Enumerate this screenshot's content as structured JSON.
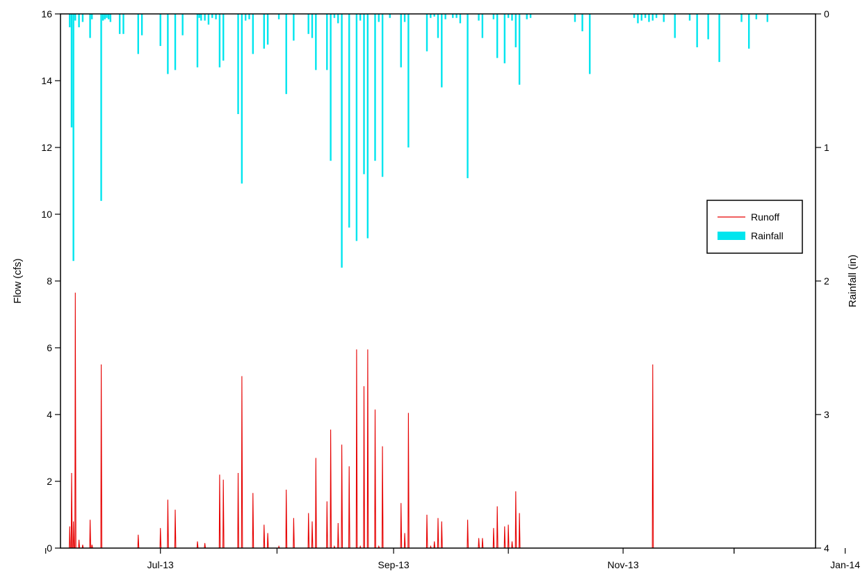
{
  "chart_data": {
    "type": "bar",
    "x_axis": {
      "tick_labels": [
        "Jul-13",
        "Sep-13",
        "Nov-13",
        "Jan-14"
      ],
      "label": ""
    },
    "y_left": {
      "label": "Flow (cfs)",
      "min": 0,
      "max": 16,
      "ticks": [
        0,
        2,
        4,
        6,
        8,
        10,
        12,
        14,
        16
      ]
    },
    "y_right": {
      "label": "Rainfall (in)",
      "min": 0,
      "max": 4,
      "inverted": true,
      "ticks": [
        0,
        1,
        2,
        3,
        4
      ]
    },
    "legend": {
      "placement": "right",
      "entries": [
        "Runoff",
        "Rainfall"
      ]
    },
    "colors": {
      "runoff": "#e60000",
      "rainfall": "#00e5ee"
    },
    "series": [
      {
        "name": "Runoff",
        "type": "line",
        "axis": "left",
        "unit": "cfs",
        "days": [
          2.5,
          3,
          3.5,
          4,
          5,
          6,
          8,
          8.5,
          11,
          11.5,
          12,
          12.5,
          13,
          13.5,
          16,
          17,
          21,
          22,
          27,
          29,
          31,
          33,
          37,
          37.5,
          38,
          39,
          40,
          41,
          42,
          43,
          44,
          48,
          49,
          50,
          51,
          52,
          55,
          56,
          59,
          61,
          63,
          67,
          68,
          69,
          72,
          73,
          74,
          75,
          76,
          78,
          80,
          81,
          82,
          83,
          85,
          86,
          87,
          89,
          92,
          93,
          94,
          99,
          100,
          101,
          102,
          103,
          104,
          106,
          107,
          108,
          110,
          113,
          114,
          117,
          118,
          120,
          121,
          122,
          123,
          124,
          126,
          127,
          139,
          141,
          143,
          155,
          156,
          157,
          158,
          159,
          160,
          161,
          163,
          166,
          170,
          172,
          175,
          178,
          184,
          186,
          188,
          191
        ],
        "values": [
          0.65,
          2.25,
          0.8,
          7.65,
          0.25,
          0.1,
          0.85,
          0.1,
          5.5,
          0.0,
          0.0,
          0.0,
          0.0,
          0.0,
          0.0,
          0.0,
          0.4,
          0.0,
          0.6,
          1.45,
          1.15,
          0.0,
          0.2,
          0.0,
          0.0,
          0.15,
          0.0,
          0.0,
          0.0,
          2.2,
          2.05,
          2.25,
          5.15,
          0.0,
          0.0,
          1.65,
          0.7,
          0.45,
          0.05,
          1.75,
          0.9,
          1.05,
          0.8,
          2.7,
          1.4,
          3.55,
          0.05,
          0.75,
          3.1,
          2.45,
          5.95,
          0.05,
          4.85,
          5.95,
          4.15,
          0.05,
          3.05,
          0.0,
          1.35,
          0.45,
          4.05,
          1.0,
          0.05,
          0.2,
          0.9,
          0.8,
          0.0,
          0.0,
          0.0,
          0.0,
          0.85,
          0.3,
          0.3,
          0.6,
          1.25,
          0.65,
          0.7,
          0.2,
          1.7,
          1.05,
          0.0,
          0.0,
          0.0,
          0.0,
          0.0,
          0.0,
          0.0,
          0.0,
          0.0,
          0.0,
          5.5,
          0.0,
          0.0,
          0.0,
          0.0,
          0.0,
          0.0,
          0.0,
          0.0,
          0.0,
          0.0,
          0.0
        ]
      },
      {
        "name": "Rainfall",
        "type": "bar",
        "axis": "right",
        "unit": "in",
        "days": [
          2.5,
          3,
          3.5,
          4,
          5,
          6,
          8,
          8.5,
          11,
          11.5,
          12,
          12.5,
          13,
          13.5,
          16,
          17,
          21,
          22,
          27,
          29,
          31,
          33,
          37,
          37.5,
          38,
          39,
          40,
          41,
          42,
          43,
          44,
          48,
          49,
          50,
          51,
          52,
          55,
          56,
          59,
          61,
          63,
          67,
          68,
          69,
          72,
          73,
          74,
          75,
          76,
          78,
          80,
          81,
          82,
          83,
          85,
          86,
          87,
          89,
          92,
          93,
          94,
          99,
          100,
          101,
          102,
          103,
          104,
          106,
          107,
          108,
          110,
          113,
          114,
          117,
          118,
          120,
          121,
          122,
          123,
          124,
          126,
          127,
          139,
          141,
          143,
          155,
          156,
          157,
          158,
          159,
          160,
          161,
          163,
          166,
          170,
          172,
          175,
          178,
          184,
          186,
          188,
          191
        ],
        "values": [
          0.1,
          0.85,
          1.85,
          0.05,
          0.1,
          0.06,
          0.18,
          0.04,
          1.4,
          0.05,
          0.04,
          0.03,
          0.04,
          0.06,
          0.15,
          0.15,
          0.3,
          0.16,
          0.24,
          0.45,
          0.42,
          0.16,
          0.4,
          0.03,
          0.05,
          0.05,
          0.08,
          0.03,
          0.04,
          0.4,
          0.35,
          0.75,
          1.27,
          0.05,
          0.04,
          0.3,
          0.26,
          0.23,
          0.04,
          0.6,
          0.2,
          0.15,
          0.18,
          0.42,
          0.42,
          1.1,
          0.03,
          0.07,
          1.9,
          1.6,
          1.7,
          0.05,
          1.2,
          1.68,
          1.1,
          0.06,
          1.22,
          0.03,
          0.4,
          0.06,
          1.0,
          0.28,
          0.03,
          0.02,
          0.18,
          0.55,
          0.04,
          0.03,
          0.03,
          0.07,
          1.23,
          0.05,
          0.18,
          0.04,
          0.33,
          0.37,
          0.03,
          0.05,
          0.25,
          0.53,
          0.04,
          0.03,
          0.06,
          0.13,
          0.45,
          0.03,
          0.07,
          0.05,
          0.03,
          0.06,
          0.05,
          0.03,
          0.06,
          0.18,
          0.05,
          0.25,
          0.19,
          0.36,
          0.06,
          0.26,
          0.04,
          0.06
        ]
      }
    ]
  }
}
